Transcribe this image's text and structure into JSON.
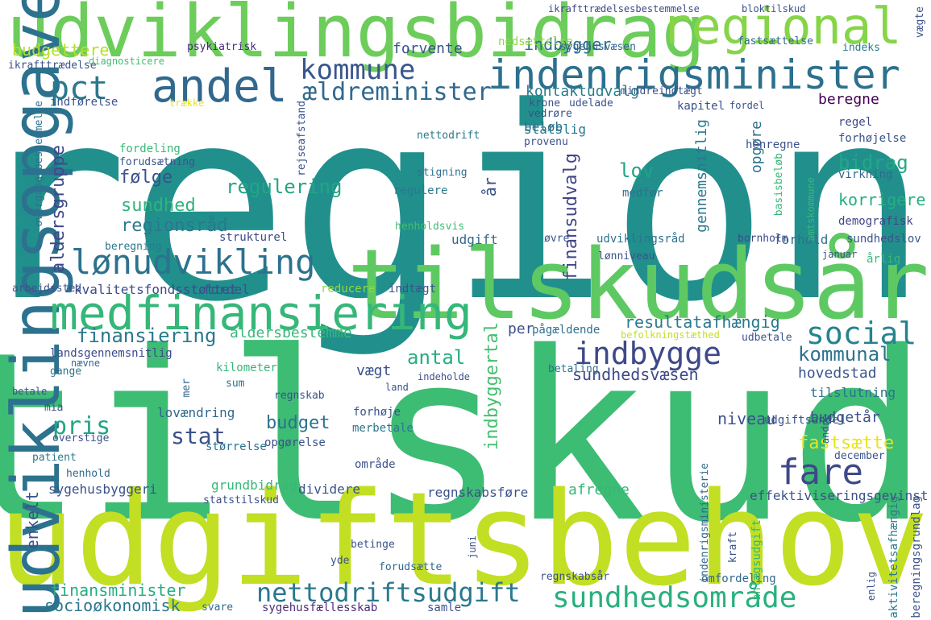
{
  "words": [
    {
      "text": "region",
      "color": "#21908d"
    },
    {
      "text": "tilskud",
      "color": "#3dbc74"
    },
    {
      "text": "udgiftsbehov",
      "color": "#c2df23"
    },
    {
      "text": "tilskudsår",
      "color": "#5ec962"
    },
    {
      "text": "udviklingsbidrag",
      "color": "#6ccd5a"
    },
    {
      "text": "udviklingsopgave",
      "color": "#2c728e"
    },
    {
      "text": "medfinansiering",
      "color": "#35b779"
    },
    {
      "text": "indenrigsminister",
      "color": "#2d708e"
    },
    {
      "text": "regional",
      "color": "#86d549"
    },
    {
      "text": "andel",
      "color": "#31688e"
    },
    {
      "text": "pct",
      "color": "#2a788e"
    },
    {
      "text": "kommune",
      "color": "#39568c"
    },
    {
      "text": "ældreminister",
      "color": "#31688e"
    },
    {
      "text": "indbygger",
      "color": "#2d708e"
    },
    {
      "text": "forvente",
      "color": "#3b528b"
    },
    {
      "text": "budgettere",
      "color": "#b5de2b"
    },
    {
      "text": "psykiatrisk",
      "color": "#472c7a"
    },
    {
      "text": "nedsættelse",
      "color": "#90d743"
    },
    {
      "text": "sygehusvæsen",
      "color": "#31688e"
    },
    {
      "text": "indeks",
      "color": "#2a788e"
    },
    {
      "text": "fastsættelse",
      "color": "#31688e"
    },
    {
      "text": "ikrafttrædelsesbestemmelse",
      "color": "#3e4989"
    },
    {
      "text": "bloktilskud",
      "color": "#3b528b"
    },
    {
      "text": "ikrafttrædelse",
      "color": "#3b528b"
    },
    {
      "text": "diagnosticere",
      "color": "#42be71"
    },
    {
      "text": "kontaktudvalg",
      "color": "#287c8e"
    },
    {
      "text": "lønudvikling",
      "color": "#2c728e"
    },
    {
      "text": "fare",
      "color": "#3e4989"
    },
    {
      "text": "social",
      "color": "#25848e"
    },
    {
      "text": "indbygge",
      "color": "#3e4989"
    },
    {
      "text": "nettodriftsudgift",
      "color": "#2a788e"
    },
    {
      "text": "sundhedsområde",
      "color": "#2ab07f"
    },
    {
      "text": "finansiering",
      "color": "#2a788e"
    },
    {
      "text": "aldersbestemme",
      "color": "#37b878"
    },
    {
      "text": "resultatafhængig",
      "color": "#2a788e"
    },
    {
      "text": "kommunal",
      "color": "#2c728e"
    },
    {
      "text": "sundhedsvæsen",
      "color": "#3e4989"
    },
    {
      "text": "hovedstad",
      "color": "#39568c"
    },
    {
      "text": "tilslutning",
      "color": "#2c728e"
    },
    {
      "text": "budgetår",
      "color": "#3b528b"
    },
    {
      "text": "fastsætte",
      "color": "#e7e419"
    },
    {
      "text": "antal",
      "color": "#26ad81"
    },
    {
      "text": "vægt",
      "color": "#3b528b"
    },
    {
      "text": "pris",
      "color": "#21a685"
    },
    {
      "text": "stat",
      "color": "#3b528b"
    },
    {
      "text": "budget",
      "color": "#2c728e"
    },
    {
      "text": "indbyggertal",
      "color": "#44bf70"
    },
    {
      "text": "finansudvalg",
      "color": "#414487"
    },
    {
      "text": "gennemsnitlig",
      "color": "#2a788e"
    },
    {
      "text": "bidrag",
      "color": "#22a884"
    },
    {
      "text": "lov",
      "color": "#20a386"
    },
    {
      "text": "korrigere",
      "color": "#26ad81"
    },
    {
      "text": "demografisk",
      "color": "#404688"
    },
    {
      "text": "sundhedslov",
      "color": "#3b528b"
    },
    {
      "text": "forhold",
      "color": "#2c728e"
    },
    {
      "text": "bornholm",
      "color": "#3e4989"
    },
    {
      "text": "årlig",
      "color": "#37b878"
    },
    {
      "text": "januar",
      "color": "#3b528b"
    },
    {
      "text": "beregne",
      "color": "#440154"
    },
    {
      "text": "regel",
      "color": "#3e4989"
    },
    {
      "text": "forhøjelse",
      "color": "#3b528b"
    },
    {
      "text": "virkning",
      "color": "#31688e"
    },
    {
      "text": "opgøre",
      "color": "#2c728e"
    },
    {
      "text": "beløb",
      "color": "#2c728e"
    },
    {
      "text": "statslig",
      "color": "#2a788e"
    },
    {
      "text": "nettodrift",
      "color": "#2a788e"
    },
    {
      "text": "stigning",
      "color": "#2c728e"
    },
    {
      "text": "regulere",
      "color": "#2a788e"
    },
    {
      "text": "henholdsvis",
      "color": "#42be71"
    },
    {
      "text": "medfør",
      "color": "#2c728e"
    },
    {
      "text": "udgift",
      "color": "#31688e"
    },
    {
      "text": "øvre",
      "color": "#3b528b"
    },
    {
      "text": "udviklingsråd",
      "color": "#2c728e"
    },
    {
      "text": "lønniveau",
      "color": "#3b528b"
    },
    {
      "text": "regulering",
      "color": "#21a685"
    },
    {
      "text": "følge",
      "color": "#3b528b"
    },
    {
      "text": "sundhed",
      "color": "#2fb47c"
    },
    {
      "text": "regionsråd",
      "color": "#2a788e"
    },
    {
      "text": "strukturel",
      "color": "#3e4989"
    },
    {
      "text": "aldersgruppe",
      "color": "#3e4989"
    },
    {
      "text": "fordeling",
      "color": "#37b878"
    },
    {
      "text": "forudsætning",
      "color": "#3b528b"
    },
    {
      "text": "rejseafstand",
      "color": "#3b528b"
    },
    {
      "text": "kvalitetsfondsstøttet",
      "color": "#3e4989"
    },
    {
      "text": "arbejdssted",
      "color": "#3b528b"
    },
    {
      "text": "fordel",
      "color": "#3b528b"
    },
    {
      "text": "reducere",
      "color": "#90d743"
    },
    {
      "text": "indtægt",
      "color": "#3b528b"
    },
    {
      "text": "landsgennemsnitlig",
      "color": "#3e4989"
    },
    {
      "text": "gange",
      "color": "#2c728e"
    },
    {
      "text": "nævne",
      "color": "#31688e"
    },
    {
      "text": "kilometer",
      "color": "#35b779"
    },
    {
      "text": "sum",
      "color": "#2c728e"
    },
    {
      "text": "mer",
      "color": "#31688e"
    },
    {
      "text": "land",
      "color": "#3b528b"
    },
    {
      "text": "regnskab",
      "color": "#3b528b"
    },
    {
      "text": "betale",
      "color": "#3b528b"
    },
    {
      "text": "mia",
      "color": "#3b528b"
    },
    {
      "text": "lovændring",
      "color": "#31688e"
    },
    {
      "text": "overstige",
      "color": "#3b528b"
    },
    {
      "text": "forhøje",
      "color": "#3b528b"
    },
    {
      "text": "merbetale",
      "color": "#2a788e"
    },
    {
      "text": "størrelse",
      "color": "#2c728e"
    },
    {
      "text": "opgørelse",
      "color": "#3b528b"
    },
    {
      "text": "patient",
      "color": "#2a788e"
    },
    {
      "text": "henhold",
      "color": "#31688e"
    },
    {
      "text": "område",
      "color": "#3b528b"
    },
    {
      "text": "niveau",
      "color": "#3b528b"
    },
    {
      "text": "udgiftsandel",
      "color": "#3b528b"
    },
    {
      "text": "december",
      "color": "#3b528b"
    },
    {
      "text": "sygehusbyggeri",
      "color": "#3b528b"
    },
    {
      "text": "grundbidrag",
      "color": "#37b878"
    },
    {
      "text": "dividere",
      "color": "#3b528b"
    },
    {
      "text": "regnskabsføre",
      "color": "#3b528b"
    },
    {
      "text": "afregne",
      "color": "#35b779"
    },
    {
      "text": "effektiviseringsgevinst",
      "color": "#3b528b"
    },
    {
      "text": "statstilskud",
      "color": "#3b528b"
    },
    {
      "text": "enkelt",
      "color": "#3b528b"
    },
    {
      "text": "finansminister",
      "color": "#26ad81"
    },
    {
      "text": "socioøkonomisk",
      "color": "#2a788e"
    },
    {
      "text": "svare",
      "color": "#31688e"
    },
    {
      "text": "sygehusfællesskab",
      "color": "#472c7a"
    },
    {
      "text": "samle",
      "color": "#3b528b"
    },
    {
      "text": "forudsætte",
      "color": "#31688e"
    },
    {
      "text": "regnskabsår",
      "color": "#3b528b"
    },
    {
      "text": "omfordeling",
      "color": "#31688e"
    },
    {
      "text": "yde",
      "color": "#3b528b"
    },
    {
      "text": "betinge",
      "color": "#3b528b"
    },
    {
      "text": "pågældende",
      "color": "#2c728e"
    },
    {
      "text": "befolkningstæthed",
      "color": "#c2df23"
    },
    {
      "text": "udbetale",
      "color": "#3b528b"
    },
    {
      "text": "indeholde",
      "color": "#3b528b"
    },
    {
      "text": "betaling",
      "color": "#2c728e"
    },
    {
      "text": "per",
      "color": "#3b528b"
    },
    {
      "text": "år",
      "color": "#3b528b"
    },
    {
      "text": "krone",
      "color": "#3b528b"
    },
    {
      "text": "udelade",
      "color": "#3b528b"
    },
    {
      "text": "kapitel",
      "color": "#3b528b"
    },
    {
      "text": "fordel",
      "color": "#3b528b"
    },
    {
      "text": "vedrøre",
      "color": "#3b528b"
    },
    {
      "text": "mindreindtægt",
      "color": "#3b528b"
    },
    {
      "text": "provenu",
      "color": "#3b528b"
    },
    {
      "text": "henregne",
      "color": "#3b528b"
    },
    {
      "text": "basisbeløb",
      "color": "#37b878"
    },
    {
      "text": "amtskommune",
      "color": "#37b878"
    },
    {
      "text": "beregning",
      "color": "#2a788e"
    },
    {
      "text": "indførelse",
      "color": "#3b528b"
    },
    {
      "text": "overgangsbestemmelse",
      "color": "#2c728e"
    },
    {
      "text": "aktivitetsafhængig",
      "color": "#2a788e"
    },
    {
      "text": "beregningsgrundlag",
      "color": "#3b528b"
    },
    {
      "text": "anlægsudgift",
      "color": "#37b878"
    },
    {
      "text": "andre",
      "color": "#3b528b"
    },
    {
      "text": "indenrigsministerie",
      "color": "#31688e"
    },
    {
      "text": "juni",
      "color": "#3b528b"
    },
    {
      "text": "kraft",
      "color": "#3b528b"
    },
    {
      "text": "enlig",
      "color": "#3b528b"
    },
    {
      "text": "vægte",
      "color": "#3b528b"
    },
    {
      "text": "trække",
      "color": "#e7e419"
    }
  ]
}
